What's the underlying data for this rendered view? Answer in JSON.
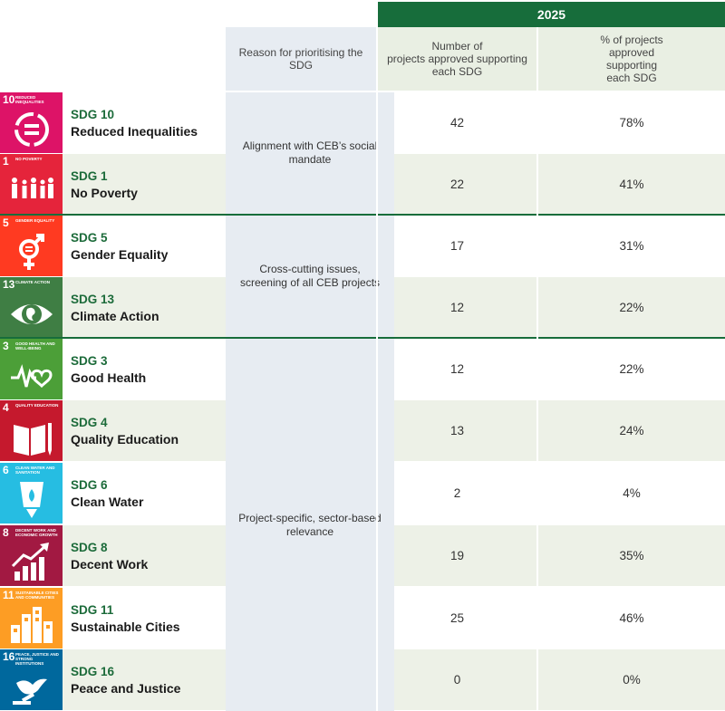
{
  "table": {
    "year": "2025",
    "headers": {
      "reason": "Reason for prioritising the SDG",
      "count": "Number of\nprojects approved supporting\neach SDG",
      "pct": "% of projects\napproved\nsupporting\neach SDG"
    },
    "reasons": [
      "Alignment with CEB’s social mandate",
      "Cross-cutting issues, screening of all CEB projects",
      "Project-specific, sector-based relevance"
    ],
    "rows": [
      {
        "icon_num": "10",
        "icon_label": "Reduced Inequalities",
        "icon_name": "equality-icon",
        "color": "#dd1367",
        "code": "SDG 10",
        "name": "Reduced Inequalities",
        "count": "42",
        "pct": "78%"
      },
      {
        "icon_num": "1",
        "icon_label": "No Poverty",
        "icon_name": "family-icon",
        "color": "#e5243b",
        "code": "SDG 1",
        "name": "No Poverty",
        "count": "22",
        "pct": "41%"
      },
      {
        "icon_num": "5",
        "icon_label": "Gender Equality",
        "icon_name": "gender-symbol-icon",
        "color": "#ff3a21",
        "code": "SDG 5",
        "name": "Gender Equality",
        "count": "17",
        "pct": "31%"
      },
      {
        "icon_num": "13",
        "icon_label": "Climate Action",
        "icon_name": "eye-globe-icon",
        "color": "#3f7e44",
        "code": "SDG 13",
        "name": "Climate Action",
        "count": "12",
        "pct": "22%"
      },
      {
        "icon_num": "3",
        "icon_label": "Good Health and Well-Being",
        "icon_name": "heartbeat-icon",
        "color": "#4c9f38",
        "code": "SDG 3",
        "name": "Good Health",
        "count": "12",
        "pct": "22%"
      },
      {
        "icon_num": "4",
        "icon_label": "Quality Education",
        "icon_name": "book-pencil-icon",
        "color": "#c5192d",
        "code": "SDG 4",
        "name": "Quality Education",
        "count": "13",
        "pct": "24%"
      },
      {
        "icon_num": "6",
        "icon_label": "Clean Water and Sanitation",
        "icon_name": "water-drop-icon",
        "color": "#26bde2",
        "code": "SDG 6",
        "name": "Clean Water",
        "count": "2",
        "pct": "4%"
      },
      {
        "icon_num": "8",
        "icon_label": "Decent Work and Economic Growth",
        "icon_name": "growth-chart-icon",
        "color": "#a21942",
        "code": "SDG 8",
        "name": "Decent Work",
        "count": "19",
        "pct": "35%"
      },
      {
        "icon_num": "11",
        "icon_label": "Sustainable Cities and Communities",
        "icon_name": "city-buildings-icon",
        "color": "#fd9d24",
        "code": "SDG 11",
        "name": "Sustainable Cities",
        "count": "25",
        "pct": "46%"
      },
      {
        "icon_num": "16",
        "icon_label": "Peace, Justice and Strong Institutions",
        "icon_name": "dove-gavel-icon",
        "color": "#00689d",
        "code": "SDG 16",
        "name": "Peace and Justice",
        "count": "0",
        "pct": "0%"
      }
    ]
  }
}
